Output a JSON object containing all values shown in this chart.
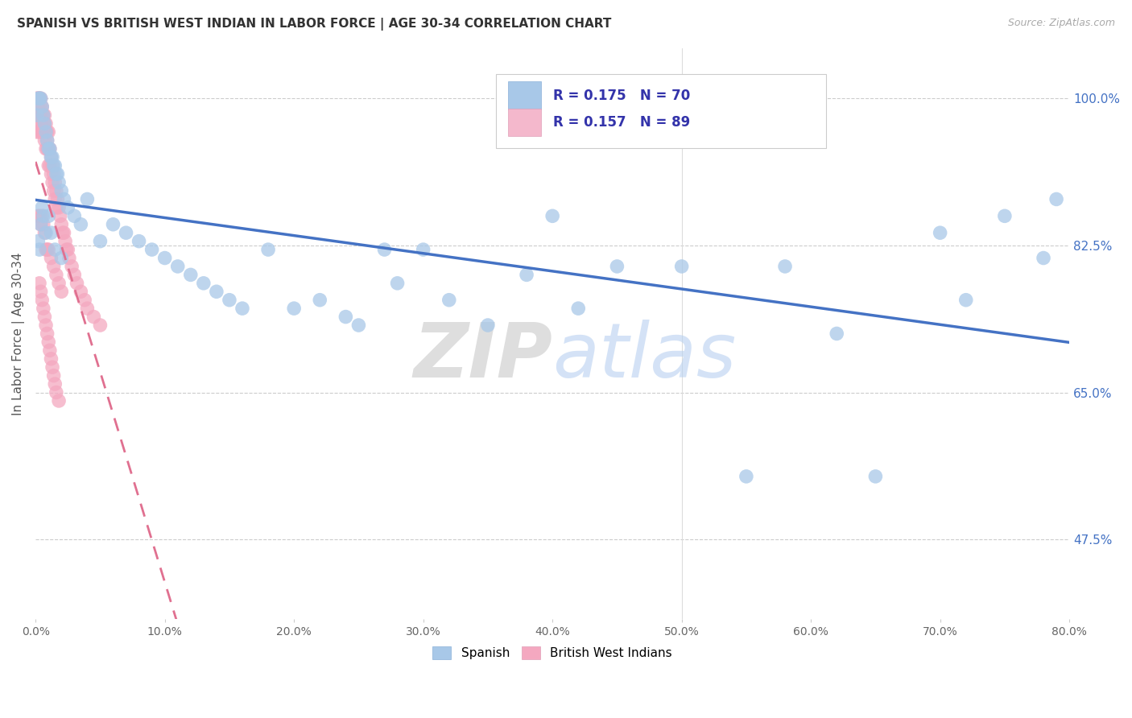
{
  "title": "SPANISH VS BRITISH WEST INDIAN IN LABOR FORCE | AGE 30-34 CORRELATION CHART",
  "source": "Source: ZipAtlas.com",
  "ylabel": "In Labor Force | Age 30-34",
  "xlim": [
    0.0,
    0.8
  ],
  "ylim": [
    0.38,
    1.06
  ],
  "xtick_labels": [
    "0.0%",
    "10.0%",
    "20.0%",
    "30.0%",
    "40.0%",
    "50.0%",
    "60.0%",
    "70.0%",
    "80.0%"
  ],
  "xtick_values": [
    0.0,
    0.1,
    0.2,
    0.3,
    0.4,
    0.5,
    0.6,
    0.7,
    0.8
  ],
  "ytick_labels": [
    "47.5%",
    "65.0%",
    "82.5%",
    "100.0%"
  ],
  "ytick_values": [
    0.475,
    0.65,
    0.825,
    1.0
  ],
  "R_spanish": 0.175,
  "N_spanish": 70,
  "R_bwi": 0.157,
  "N_bwi": 89,
  "spanish_color": "#a8c8e8",
  "bwi_color": "#f4a8c0",
  "trend_spanish_color": "#4472c4",
  "trend_bwi_color": "#e07090",
  "legend_spanish_fill": "#a8c8e8",
  "legend_bwi_fill": "#f4b8cc",
  "title_color": "#333333",
  "source_color": "#aaaaaa",
  "tick_label_color_right": "#4472c4",
  "grid_color": "#cccccc",
  "watermark_zip_color": "#c8c8c8",
  "watermark_atlas_color": "#b8d0f0",
  "spanish_x": [
    0.001,
    0.002,
    0.003,
    0.004,
    0.005,
    0.006,
    0.007,
    0.008,
    0.009,
    0.01,
    0.011,
    0.012,
    0.013,
    0.014,
    0.015,
    0.016,
    0.017,
    0.018,
    0.02,
    0.022,
    0.025,
    0.03,
    0.035,
    0.04,
    0.05,
    0.06,
    0.07,
    0.08,
    0.09,
    0.1,
    0.11,
    0.12,
    0.13,
    0.14,
    0.15,
    0.16,
    0.18,
    0.2,
    0.22,
    0.24,
    0.25,
    0.27,
    0.28,
    0.3,
    0.32,
    0.35,
    0.38,
    0.4,
    0.42,
    0.45,
    0.5,
    0.55,
    0.58,
    0.62,
    0.65,
    0.7,
    0.72,
    0.75,
    0.78,
    0.79,
    0.002,
    0.003,
    0.004,
    0.005,
    0.006,
    0.008,
    0.01,
    0.012,
    0.015,
    0.02
  ],
  "spanish_y": [
    0.98,
    1.0,
    1.0,
    1.0,
    0.99,
    0.98,
    0.97,
    0.96,
    0.95,
    0.94,
    0.94,
    0.93,
    0.93,
    0.92,
    0.92,
    0.91,
    0.91,
    0.9,
    0.89,
    0.88,
    0.87,
    0.86,
    0.85,
    0.88,
    0.83,
    0.85,
    0.84,
    0.83,
    0.82,
    0.81,
    0.8,
    0.79,
    0.78,
    0.77,
    0.76,
    0.75,
    0.82,
    0.75,
    0.76,
    0.74,
    0.73,
    0.82,
    0.78,
    0.82,
    0.76,
    0.73,
    0.79,
    0.86,
    0.75,
    0.8,
    0.8,
    0.55,
    0.8,
    0.72,
    0.55,
    0.84,
    0.76,
    0.86,
    0.81,
    0.88,
    0.83,
    0.82,
    0.85,
    0.87,
    0.86,
    0.84,
    0.86,
    0.84,
    0.82,
    0.81
  ],
  "bwi_x": [
    0.001,
    0.001,
    0.001,
    0.002,
    0.002,
    0.002,
    0.003,
    0.003,
    0.003,
    0.004,
    0.004,
    0.004,
    0.005,
    0.005,
    0.005,
    0.006,
    0.006,
    0.006,
    0.007,
    0.007,
    0.007,
    0.008,
    0.008,
    0.008,
    0.009,
    0.009,
    0.009,
    0.01,
    0.01,
    0.01,
    0.011,
    0.011,
    0.012,
    0.012,
    0.013,
    0.013,
    0.014,
    0.014,
    0.015,
    0.015,
    0.016,
    0.016,
    0.017,
    0.018,
    0.019,
    0.02,
    0.021,
    0.022,
    0.023,
    0.024,
    0.025,
    0.026,
    0.028,
    0.03,
    0.032,
    0.035,
    0.038,
    0.04,
    0.045,
    0.05,
    0.002,
    0.003,
    0.004,
    0.005,
    0.006,
    0.007,
    0.008,
    0.009,
    0.01,
    0.012,
    0.014,
    0.016,
    0.018,
    0.02,
    0.003,
    0.004,
    0.005,
    0.006,
    0.007,
    0.008,
    0.009,
    0.01,
    0.011,
    0.012,
    0.013,
    0.014,
    0.015,
    0.016,
    0.018
  ],
  "bwi_y": [
    1.0,
    0.98,
    0.96,
    1.0,
    0.99,
    0.97,
    1.0,
    0.98,
    0.96,
    1.0,
    0.99,
    0.97,
    0.99,
    0.98,
    0.96,
    0.98,
    0.97,
    0.96,
    0.98,
    0.97,
    0.95,
    0.97,
    0.96,
    0.94,
    0.96,
    0.95,
    0.94,
    0.96,
    0.94,
    0.92,
    0.94,
    0.92,
    0.93,
    0.91,
    0.92,
    0.9,
    0.91,
    0.89,
    0.9,
    0.88,
    0.89,
    0.87,
    0.88,
    0.87,
    0.86,
    0.85,
    0.84,
    0.84,
    0.83,
    0.82,
    0.82,
    0.81,
    0.8,
    0.79,
    0.78,
    0.77,
    0.76,
    0.75,
    0.74,
    0.73,
    0.86,
    0.86,
    0.85,
    0.86,
    0.85,
    0.84,
    0.82,
    0.82,
    0.82,
    0.81,
    0.8,
    0.79,
    0.78,
    0.77,
    0.78,
    0.77,
    0.76,
    0.75,
    0.74,
    0.73,
    0.72,
    0.71,
    0.7,
    0.69,
    0.68,
    0.67,
    0.66,
    0.65,
    0.64
  ]
}
